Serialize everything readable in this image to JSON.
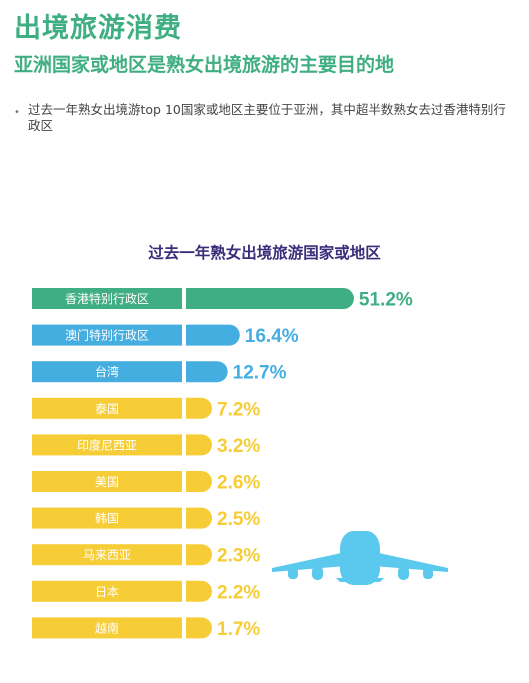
{
  "header": {
    "title": "出境旅游消费",
    "subtitle": "亚洲国家或地区是熟女出境旅游的主要目的地",
    "bullet": "过去一年熟女出境游top 10国家或地区主要位于亚洲，其中超半数熟女去过香港特别行政区"
  },
  "chart_data": {
    "type": "bar",
    "orientation": "horizontal",
    "title": "过去一年熟女出境旅游国家或地区",
    "categories": [
      "香港特别行政区",
      "澳门特别行政区",
      "台湾",
      "泰国",
      "印度尼西亚",
      "美国",
      "韩国",
      "马来西亚",
      "日本",
      "越南"
    ],
    "values": [
      51.2,
      16.4,
      12.7,
      7.2,
      3.2,
      2.6,
      2.5,
      2.3,
      2.2,
      1.7
    ],
    "value_labels": [
      "51.2%",
      "16.4%",
      "12.7%",
      "7.2%",
      "3.2%",
      "2.6%",
      "2.5%",
      "2.3%",
      "2.2%",
      "1.7%"
    ],
    "colors": [
      "#3fae84",
      "#45aee0",
      "#45aee0",
      "#f6cd37",
      "#f6cd37",
      "#f6cd37",
      "#f6cd37",
      "#f6cd37",
      "#f6cd37",
      "#f6cd37"
    ]
  },
  "decoration": {
    "plane_icon": "airplane-icon",
    "plane_color": "#5bc8ee"
  }
}
